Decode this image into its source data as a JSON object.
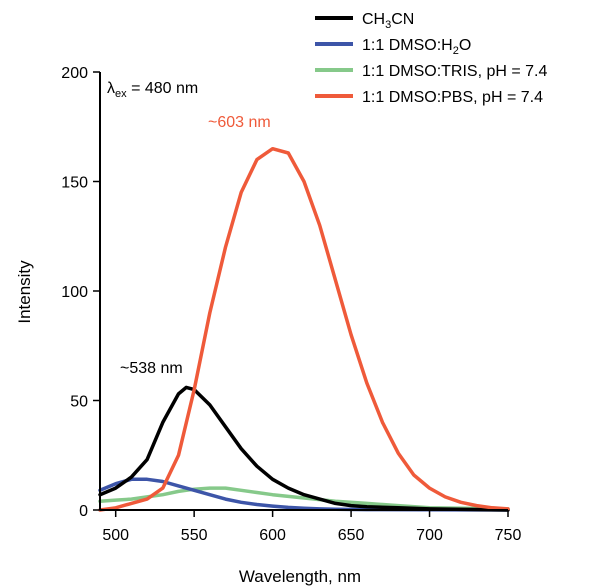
{
  "chart_data": {
    "type": "line",
    "xlabel": "Wavelength, nm",
    "ylabel": "Intensity",
    "xlim": [
      490,
      750
    ],
    "ylim": [
      0,
      200
    ],
    "xticks": [
      500,
      550,
      600,
      650,
      700,
      750
    ],
    "yticks": [
      0,
      50,
      100,
      150,
      200
    ],
    "grid": false,
    "legend_position": "top-right",
    "annotations": {
      "excitation_prefix": "λ",
      "excitation_sub": "ex",
      "excitation_value": " = 480 nm",
      "peak_red": "~603 nm",
      "peak_black": "~538 nm"
    },
    "series": [
      {
        "name": "CH3CN",
        "legend_base": "CH",
        "legend_sub1": "3",
        "legend_rest": "CN",
        "color": "#000000",
        "points": [
          [
            490,
            7
          ],
          [
            500,
            10
          ],
          [
            510,
            15
          ],
          [
            520,
            23
          ],
          [
            530,
            40
          ],
          [
            540,
            53
          ],
          [
            545,
            56
          ],
          [
            550,
            55
          ],
          [
            560,
            48
          ],
          [
            570,
            38
          ],
          [
            580,
            28
          ],
          [
            590,
            20
          ],
          [
            600,
            14
          ],
          [
            610,
            10
          ],
          [
            620,
            7
          ],
          [
            630,
            5
          ],
          [
            640,
            3
          ],
          [
            650,
            2
          ],
          [
            660,
            1.5
          ],
          [
            680,
            1
          ],
          [
            700,
            0.5
          ],
          [
            750,
            0
          ]
        ]
      },
      {
        "name": "1:1 DMSO:H2O",
        "legend_base": "1:1 DMSO:H",
        "legend_sub1": "2",
        "legend_rest": "O",
        "color": "#3d55a8",
        "points": [
          [
            490,
            9
          ],
          [
            500,
            12
          ],
          [
            510,
            14
          ],
          [
            520,
            14
          ],
          [
            530,
            13
          ],
          [
            540,
            11
          ],
          [
            550,
            9
          ],
          [
            560,
            7
          ],
          [
            570,
            5
          ],
          [
            580,
            3.5
          ],
          [
            590,
            2.5
          ],
          [
            600,
            1.8
          ],
          [
            610,
            1.2
          ],
          [
            620,
            0.8
          ],
          [
            630,
            0.5
          ],
          [
            640,
            0.3
          ],
          [
            660,
            0.2
          ],
          [
            750,
            0
          ]
        ]
      },
      {
        "name": "1:1 DMSO:TRIS, pH = 7.4",
        "color": "#86c98a",
        "points": [
          [
            490,
            4
          ],
          [
            500,
            4.5
          ],
          [
            510,
            5
          ],
          [
            520,
            6
          ],
          [
            530,
            7
          ],
          [
            540,
            8.5
          ],
          [
            550,
            9.5
          ],
          [
            560,
            10
          ],
          [
            570,
            10
          ],
          [
            580,
            9
          ],
          [
            590,
            8
          ],
          [
            600,
            7
          ],
          [
            620,
            5.5
          ],
          [
            640,
            4
          ],
          [
            660,
            3
          ],
          [
            680,
            2
          ],
          [
            700,
            1
          ],
          [
            750,
            0.5
          ]
        ]
      },
      {
        "name": "1:1 DMSO:PBS, pH = 7.4",
        "color": "#ef5a3a",
        "points": [
          [
            490,
            0
          ],
          [
            500,
            1
          ],
          [
            510,
            3
          ],
          [
            520,
            5
          ],
          [
            530,
            10
          ],
          [
            540,
            25
          ],
          [
            550,
            55
          ],
          [
            560,
            90
          ],
          [
            570,
            120
          ],
          [
            580,
            145
          ],
          [
            590,
            160
          ],
          [
            600,
            165
          ],
          [
            610,
            163
          ],
          [
            620,
            150
          ],
          [
            630,
            130
          ],
          [
            640,
            105
          ],
          [
            650,
            80
          ],
          [
            660,
            58
          ],
          [
            670,
            40
          ],
          [
            680,
            26
          ],
          [
            690,
            16
          ],
          [
            700,
            10
          ],
          [
            710,
            6
          ],
          [
            720,
            3.5
          ],
          [
            730,
            2
          ],
          [
            740,
            1
          ],
          [
            750,
            0.5
          ]
        ]
      }
    ]
  }
}
